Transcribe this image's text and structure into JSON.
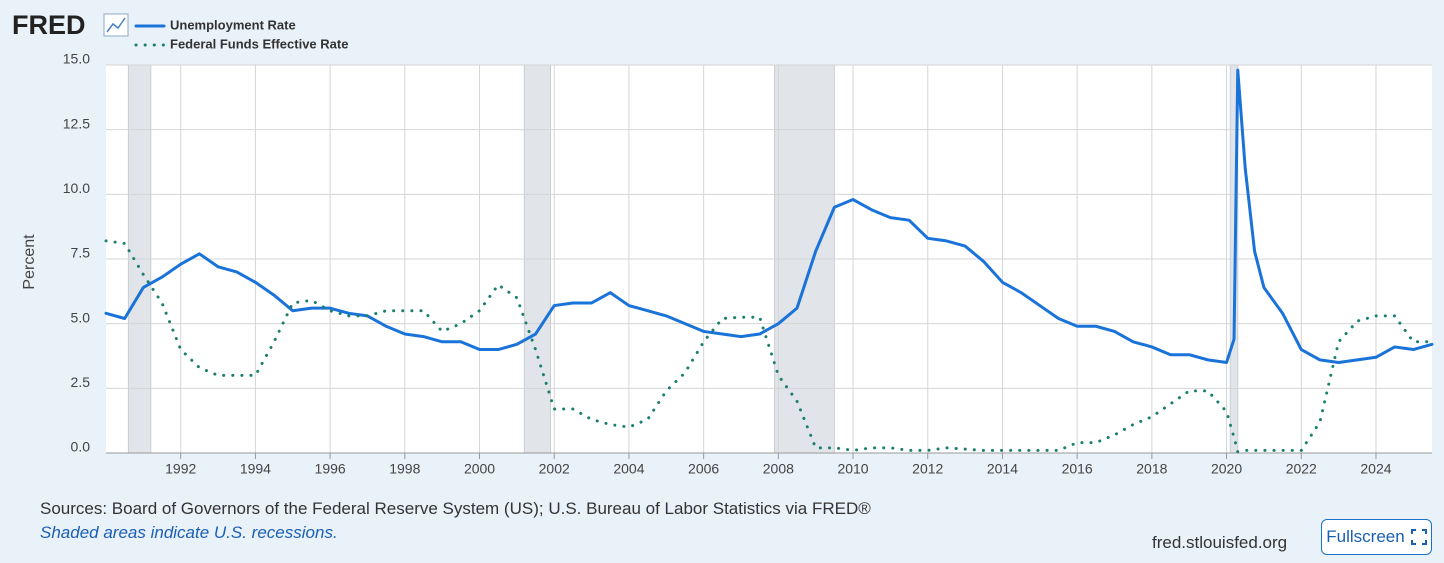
{
  "logo": "FRED",
  "chart_data": {
    "type": "line",
    "y_label": "Percent",
    "x": [
      1990.0,
      1990.5,
      1991.0,
      1991.5,
      1992.0,
      1992.5,
      1993.0,
      1993.5,
      1994.0,
      1994.5,
      1995.0,
      1995.5,
      1996.0,
      1996.5,
      1997.0,
      1997.5,
      1998.0,
      1998.5,
      1999.0,
      1999.5,
      2000.0,
      2000.5,
      2001.0,
      2001.5,
      2002.0,
      2002.5,
      2003.0,
      2003.5,
      2004.0,
      2004.5,
      2005.0,
      2005.5,
      2006.0,
      2006.5,
      2007.0,
      2007.5,
      2008.0,
      2008.5,
      2009.0,
      2009.5,
      2010.0,
      2010.5,
      2011.0,
      2011.5,
      2012.0,
      2012.5,
      2013.0,
      2013.5,
      2014.0,
      2014.5,
      2015.0,
      2015.5,
      2016.0,
      2016.5,
      2017.0,
      2017.5,
      2018.0,
      2018.5,
      2019.0,
      2019.5,
      2020.0,
      2020.2,
      2020.3,
      2020.5,
      2020.75,
      2021.0,
      2021.5,
      2022.0,
      2022.5,
      2023.0,
      2023.5,
      2024.0,
      2024.5,
      2025.0,
      2025.5
    ],
    "series": [
      {
        "name": "Unemployment Rate",
        "color": "#1a73d9",
        "style": "solid",
        "values": [
          5.4,
          5.2,
          6.4,
          6.8,
          7.3,
          7.7,
          7.2,
          7.0,
          6.6,
          6.1,
          5.5,
          5.6,
          5.6,
          5.4,
          5.3,
          4.9,
          4.6,
          4.5,
          4.3,
          4.3,
          4.0,
          4.0,
          4.2,
          4.6,
          5.7,
          5.8,
          5.8,
          6.2,
          5.7,
          5.5,
          5.3,
          5.0,
          4.7,
          4.6,
          4.5,
          4.6,
          5.0,
          5.6,
          7.8,
          9.5,
          9.8,
          9.4,
          9.1,
          9.0,
          8.3,
          8.2,
          8.0,
          7.4,
          6.6,
          6.2,
          5.7,
          5.2,
          4.9,
          4.9,
          4.7,
          4.3,
          4.1,
          3.8,
          3.8,
          3.6,
          3.5,
          4.4,
          14.8,
          11.0,
          7.8,
          6.4,
          5.4,
          4.0,
          3.6,
          3.5,
          3.6,
          3.7,
          4.1,
          4.0,
          4.2
        ]
      },
      {
        "name": "Federal Funds Effective Rate",
        "color": "#1b7f6e",
        "style": "dotted",
        "values": [
          8.2,
          8.1,
          6.9,
          5.8,
          4.0,
          3.3,
          3.0,
          3.0,
          3.0,
          4.3,
          5.8,
          5.9,
          5.5,
          5.3,
          5.3,
          5.5,
          5.5,
          5.5,
          4.7,
          5.0,
          5.5,
          6.5,
          6.0,
          4.0,
          1.7,
          1.7,
          1.3,
          1.1,
          1.0,
          1.3,
          2.4,
          3.1,
          4.3,
          5.2,
          5.25,
          5.25,
          3.0,
          2.0,
          0.2,
          0.2,
          0.1,
          0.2,
          0.2,
          0.1,
          0.1,
          0.2,
          0.15,
          0.1,
          0.1,
          0.1,
          0.1,
          0.1,
          0.4,
          0.4,
          0.7,
          1.1,
          1.4,
          1.9,
          2.4,
          2.4,
          1.6,
          0.6,
          0.05,
          0.1,
          0.1,
          0.1,
          0.1,
          0.1,
          1.2,
          4.3,
          5.1,
          5.3,
          5.3,
          4.3,
          4.3
        ]
      }
    ],
    "recessions": [
      [
        1990.6,
        1991.2
      ],
      [
        2001.2,
        2001.9
      ],
      [
        2007.9,
        2009.5
      ],
      [
        2020.1,
        2020.3
      ]
    ],
    "xlim": [
      1990,
      2025.5
    ],
    "xticks": [
      1992,
      1994,
      1996,
      1998,
      2000,
      2002,
      2004,
      2006,
      2008,
      2010,
      2012,
      2014,
      2016,
      2018,
      2020,
      2022,
      2024
    ],
    "ylim": [
      0,
      15
    ],
    "yticks": [
      {
        "value": 0,
        "label": "0.0"
      },
      2.5,
      {
        "value": 5,
        "label": "5.0"
      },
      7.5,
      {
        "value": 10,
        "label": "10.0"
      },
      12.5,
      {
        "value": 15,
        "label": "15.0"
      }
    ],
    "grid": true
  },
  "footer": {
    "sources": "Sources: Board of Governors of the Federal Reserve System (US); U.S. Bureau of Labor Statistics via FRED®",
    "note": "Shaded areas indicate U.S. recessions.",
    "site": "fred.stlouisfed.org",
    "button": "Fullscreen"
  }
}
